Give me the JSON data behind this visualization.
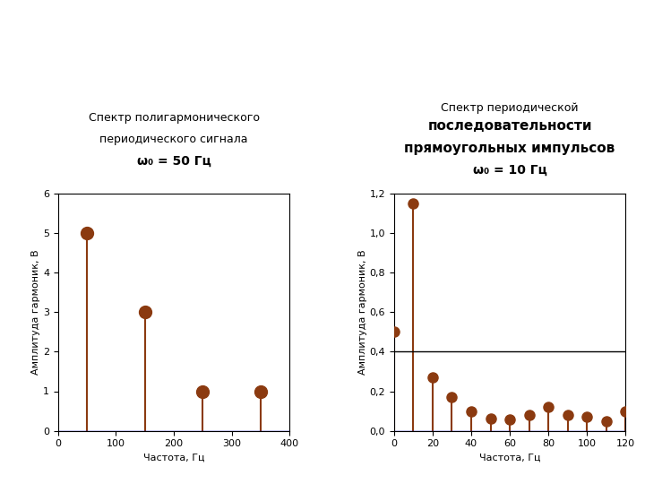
{
  "left": {
    "title_line1": "Спектр полигармонического",
    "title_line2": "периодического сигнала",
    "title_line3": "ω₀ = 50 Гц",
    "freqs": [
      50,
      150,
      250,
      350
    ],
    "amps": [
      5,
      3,
      1,
      1
    ],
    "xlabel": "Частота, Гц",
    "ylabel": "Амплитуда гармоник, В",
    "xlim": [
      0,
      400
    ],
    "ylim": [
      0,
      6
    ],
    "xticks": [
      0,
      100,
      200,
      300,
      400
    ],
    "yticks": [
      0,
      1,
      2,
      3,
      4,
      5,
      6
    ]
  },
  "right": {
    "title_line1": "Спектр периодической",
    "title_line2": "последовательности",
    "title_line3": "прямоугольных импульсов",
    "title_line4": "ω₀ = 10 Гц",
    "freqs": [
      0,
      10,
      20,
      30,
      40,
      50,
      60,
      70,
      80,
      90,
      100,
      110,
      120
    ],
    "amps": [
      0.5,
      1.15,
      0.27,
      0.17,
      0.1,
      0.06,
      0.055,
      0.08,
      0.12,
      0.08,
      0.07,
      0.05,
      0.1
    ],
    "hline": 0.4,
    "xlabel": "Частота, Гц",
    "ylabel": "Амплитуда гармоник, В",
    "xlim": [
      0,
      120
    ],
    "ylim": [
      0,
      1.2
    ],
    "xticks": [
      0,
      20,
      40,
      60,
      80,
      100,
      120
    ],
    "yticks": [
      0.0,
      0.2,
      0.4,
      0.6,
      0.8,
      1.0,
      1.2
    ]
  },
  "stem_color": "#8B3A10",
  "base_color": "#0000CC",
  "bg_color": "#ffffff",
  "axis_label_size": 8,
  "tick_label_size": 8
}
